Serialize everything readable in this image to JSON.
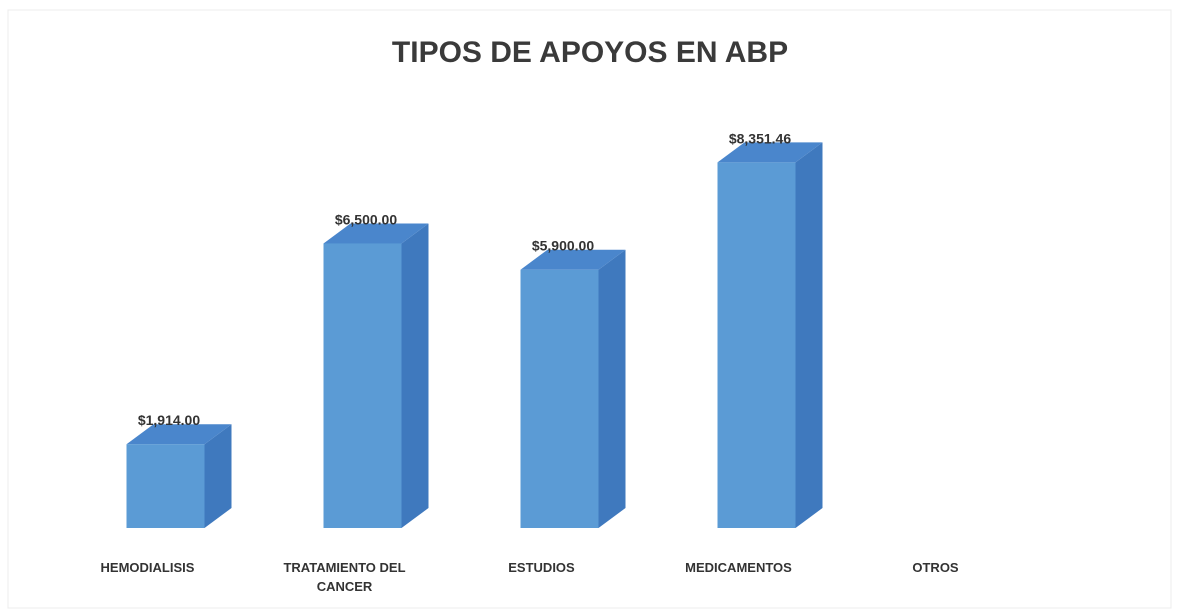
{
  "chart_data": {
    "type": "bar3d",
    "title": "TIPOS DE APOYOS EN ABP",
    "categories": [
      "HEMODIALISIS",
      "TRATAMIENTO DEL CANCER",
      "ESTUDIOS",
      "MEDICAMENTOS",
      "OTROS"
    ],
    "values": [
      1914,
      6500,
      5900,
      8351.46,
      null
    ],
    "value_labels": [
      "$1,914.00",
      "$6,500.00",
      "$5,900.00",
      "$8,351.46",
      null
    ],
    "color": "#5b9bd5",
    "ylim": [
      0,
      9000
    ]
  }
}
